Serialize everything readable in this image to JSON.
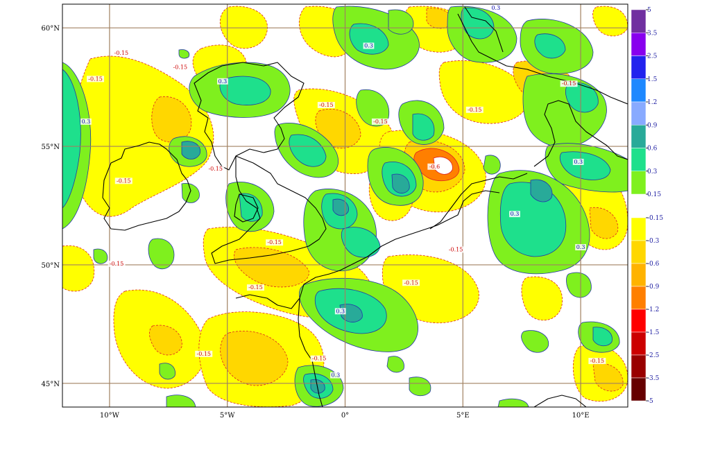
{
  "map": {
    "lat_labels": [
      {
        "text": "60°N",
        "lat": 60
      },
      {
        "text": "55°N",
        "lat": 55
      },
      {
        "text": "50°N",
        "lat": 50
      },
      {
        "text": "45°N",
        "lat": 45
      }
    ],
    "lon_labels": [
      {
        "text": "10°W",
        "lon": -10
      },
      {
        "text": "5°W",
        "lon": -5
      },
      {
        "text": "0°",
        "lon": 0
      },
      {
        "text": "5°E",
        "lon": 5
      },
      {
        "text": "10°E",
        "lon": 10
      }
    ],
    "extent": {
      "lon_min": -12,
      "lon_max": 12,
      "lat_min": 44,
      "lat_max": 61
    },
    "contour_labels": [
      {
        "text": "-0.15",
        "sign": "neg",
        "lon": -9.5,
        "lat": 58.9
      },
      {
        "text": "-0.15",
        "sign": "neg",
        "lon": -7.0,
        "lat": 58.3
      },
      {
        "text": "-0.15",
        "sign": "neg",
        "lon": -10.6,
        "lat": 57.8
      },
      {
        "text": "-0.15",
        "sign": "neg",
        "lon": -0.8,
        "lat": 56.7
      },
      {
        "text": "-0.15",
        "sign": "neg",
        "lon": 1.5,
        "lat": 56.0
      },
      {
        "text": "-0.15",
        "sign": "neg",
        "lon": 5.5,
        "lat": 56.5
      },
      {
        "text": "-0.15",
        "sign": "neg",
        "lon": 9.5,
        "lat": 57.6
      },
      {
        "text": "-0.15",
        "sign": "neg",
        "lon": -5.5,
        "lat": 54.0
      },
      {
        "text": "-0.15",
        "sign": "neg",
        "lon": -9.4,
        "lat": 53.5
      },
      {
        "text": "-0.6",
        "sign": "neg",
        "lon": 3.8,
        "lat": 54.1
      },
      {
        "text": "-0.15",
        "sign": "neg",
        "lon": -3.0,
        "lat": 50.9
      },
      {
        "text": "-0.15",
        "sign": "neg",
        "lon": 4.7,
        "lat": 50.6
      },
      {
        "text": "-0.15",
        "sign": "neg",
        "lon": -9.7,
        "lat": 50.0
      },
      {
        "text": "-0.15",
        "sign": "neg",
        "lon": -3.8,
        "lat": 49.0
      },
      {
        "text": "-0.15",
        "sign": "neg",
        "lon": 2.8,
        "lat": 49.2
      },
      {
        "text": "-0.15",
        "sign": "neg",
        "lon": -6.0,
        "lat": 46.2
      },
      {
        "text": "-0.15",
        "sign": "neg",
        "lon": -1.1,
        "lat": 46.0
      },
      {
        "text": "-0.15",
        "sign": "neg",
        "lon": 10.7,
        "lat": 45.9
      },
      {
        "text": "0.3",
        "sign": "pos",
        "lon": 1.0,
        "lat": 59.2
      },
      {
        "text": "0.3",
        "sign": "pos",
        "lon": 6.4,
        "lat": 60.8
      },
      {
        "text": "0.3",
        "sign": "pos",
        "lon": -5.2,
        "lat": 57.7
      },
      {
        "text": "0.3",
        "sign": "pos",
        "lon": -11.0,
        "lat": 56.0
      },
      {
        "text": "0.3",
        "sign": "pos",
        "lon": 9.9,
        "lat": 54.3
      },
      {
        "text": "0.3",
        "sign": "pos",
        "lon": 7.2,
        "lat": 52.1
      },
      {
        "text": "0.3",
        "sign": "pos",
        "lon": 10.0,
        "lat": 50.7
      },
      {
        "text": "0.3",
        "sign": "pos",
        "lon": -0.2,
        "lat": 48.0
      },
      {
        "text": "0.3",
        "sign": "pos",
        "lon": -0.4,
        "lat": 45.3
      }
    ]
  },
  "colorbar": {
    "positive": [
      {
        "label": "5",
        "color": "#7030a0"
      },
      {
        "label": "3.5",
        "color": "#8800ee"
      },
      {
        "label": "2.5",
        "color": "#2222ee"
      },
      {
        "label": "1.5",
        "color": "#1e88ff"
      },
      {
        "label": "1.2",
        "color": "#88aaff"
      },
      {
        "label": "0.9",
        "color": "#28aa99"
      },
      {
        "label": "0.6",
        "color": "#1ee08c"
      },
      {
        "label": "0.3",
        "color": "#7ff01e"
      },
      {
        "label": "0.15",
        "color": ""
      }
    ],
    "negative": [
      {
        "label": "-0.15",
        "color": "#ffff00"
      },
      {
        "label": "-0.3",
        "color": "#ffd700"
      },
      {
        "label": "-0.6",
        "color": "#ffb300"
      },
      {
        "label": "-0.9",
        "color": "#ff7f00"
      },
      {
        "label": "-1.2",
        "color": "#ff0000"
      },
      {
        "label": "-1.5",
        "color": "#cc0000"
      },
      {
        "label": "-2.5",
        "color": "#990000"
      },
      {
        "label": "-3.5",
        "color": "#660000"
      },
      {
        "label": "-5",
        "color": ""
      }
    ]
  },
  "colors": {
    "neg1": "#ffff00",
    "neg2": "#ffd700",
    "neg3": "#ffb300",
    "neg4": "#ff7f00",
    "pos1": "#7ff01e",
    "pos2": "#1ee08c",
    "pos3": "#28aa99",
    "pos4": "#88aaff",
    "grid": "#a08060",
    "coast": "#000000"
  }
}
